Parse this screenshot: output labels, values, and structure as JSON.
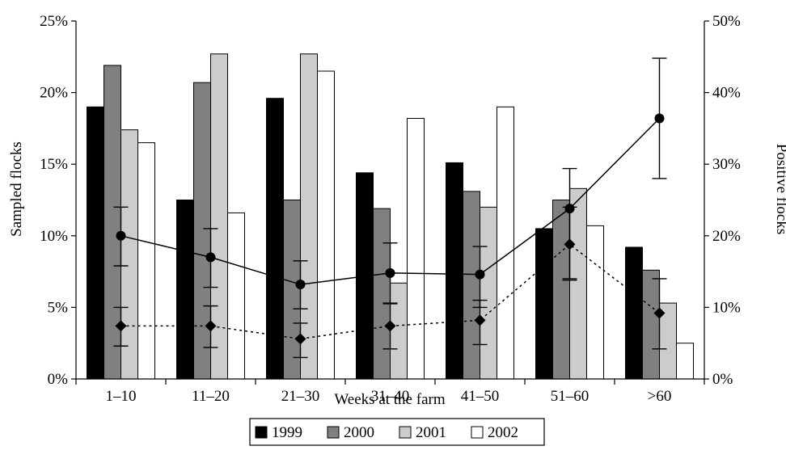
{
  "chart_data": {
    "type": "bar",
    "xlabel": "Weeks at the farm",
    "ylabel_left": "Sampled flocks",
    "ylabel_right": "Positive flocks",
    "categories": [
      "1–10",
      "11–20",
      "21–30",
      "31–40",
      "41–50",
      "51–60",
      ">60"
    ],
    "ylim_left": [
      0,
      25
    ],
    "ylim_right": [
      0,
      50
    ],
    "yticks_left": [
      "0%",
      "5%",
      "10%",
      "15%",
      "20%",
      "25%"
    ],
    "yticks_right": [
      "0%",
      "10%",
      "20%",
      "30%",
      "40%",
      "50%"
    ],
    "legend_position": "bottom",
    "series": [
      {
        "name": "1999",
        "color": "#000000",
        "values": [
          19.0,
          12.5,
          19.6,
          14.4,
          15.1,
          10.5,
          9.2
        ]
      },
      {
        "name": "2000",
        "color": "#808080",
        "values": [
          21.9,
          20.7,
          12.5,
          11.9,
          13.1,
          12.5,
          7.6
        ]
      },
      {
        "name": "2001",
        "color": "#cccccc",
        "values": [
          17.4,
          22.7,
          22.7,
          6.7,
          12.0,
          13.3,
          5.3
        ]
      },
      {
        "name": "2002",
        "color": "#ffffff",
        "values": [
          16.5,
          11.6,
          21.5,
          18.2,
          19.0,
          10.7,
          2.5
        ]
      }
    ],
    "lines": [
      {
        "style": "solid",
        "marker": "circle",
        "axis": "right",
        "values": [
          20.0,
          17.0,
          13.2,
          14.8,
          14.6,
          23.8,
          36.4
        ],
        "err_low": [
          15.8,
          12.8,
          9.8,
          10.5,
          10.0,
          13.8,
          28.0
        ],
        "err_high": [
          24.0,
          21.0,
          16.5,
          19.0,
          18.5,
          29.4,
          44.8
        ]
      },
      {
        "style": "dotted",
        "marker": "diamond",
        "axis": "right",
        "values": [
          7.4,
          7.4,
          5.6,
          7.4,
          8.2,
          18.8,
          9.2
        ],
        "err_low": [
          4.6,
          4.4,
          3.0,
          4.2,
          4.8,
          14.0,
          4.2
        ],
        "err_high": [
          10.0,
          10.2,
          7.8,
          10.6,
          11.0,
          24.0,
          14.0
        ]
      }
    ]
  }
}
